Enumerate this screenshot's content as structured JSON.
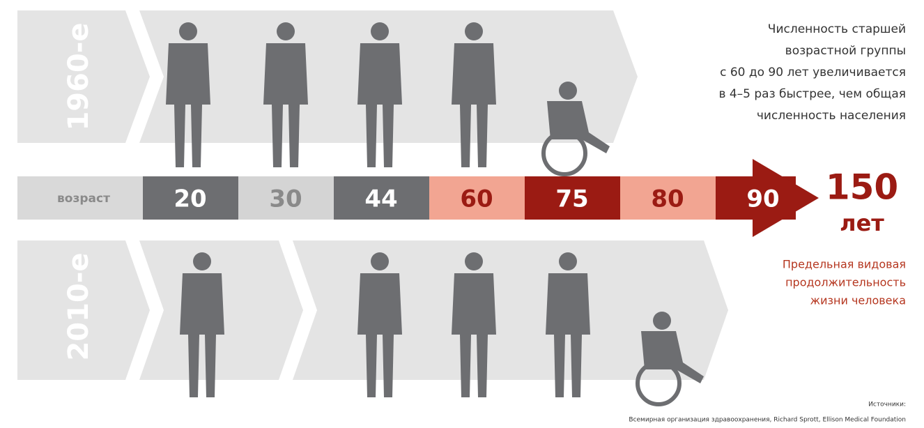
{
  "rows": [
    {
      "label": "1960-е"
    },
    {
      "label": "2010-е"
    }
  ],
  "age_scale": {
    "label": "возраст",
    "ages": [
      20,
      30,
      44,
      60,
      75,
      80,
      90
    ],
    "limit": {
      "value": "150",
      "unit": "лет"
    }
  },
  "notes": {
    "growth": [
      "Численность старшей",
      "возрастной группы",
      "с 60 до 90 лет увеличивается",
      "в 4–5 раз быстрее, чем общая",
      "численность населения"
    ],
    "limit": [
      "Предельная видовая",
      "продолжительность",
      "жизни человека"
    ]
  },
  "source": {
    "title": "Источники:",
    "text": "Всемирная организация здравоохранения, Richard Sprott, Ellison Medical Foundation"
  }
}
